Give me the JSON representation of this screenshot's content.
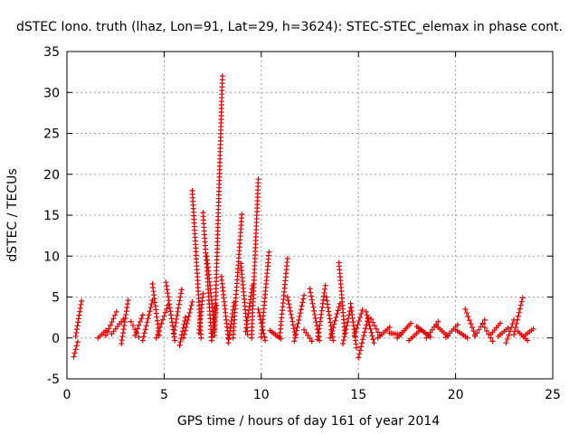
{
  "chart_data": {
    "type": "scatter",
    "title": "dSTEC Iono. truth (lhaz, Lon=91, Lat=29, h=3624): STEC-STEC_elemax in phase cont.",
    "xlabel": "GPS time / hours of day 161 of year 2014",
    "ylabel": "dSTEC  / TECUs",
    "xlim": [
      0,
      25
    ],
    "ylim": [
      -5,
      35
    ],
    "x_ticks": [
      0,
      5,
      10,
      15,
      20,
      25
    ],
    "y_ticks": [
      -5,
      0,
      5,
      10,
      15,
      20,
      25,
      30,
      35
    ],
    "grid": true,
    "marker": "+",
    "series_color": "#e00000",
    "arcs": [
      {
        "x0": 0.35,
        "x1": 0.55,
        "y0": -2.3,
        "y1": -0.5
      },
      {
        "x0": 0.45,
        "x1": 0.75,
        "y0": 0.2,
        "y1": 4.5
      },
      {
        "x0": 1.6,
        "x1": 2.0,
        "y0": 0.0,
        "y1": 0.9
      },
      {
        "x0": 2.0,
        "x1": 2.55,
        "y0": 0.3,
        "y1": 3.2
      },
      {
        "x0": 2.3,
        "x1": 2.9,
        "y0": 0.5,
        "y1": 2.3
      },
      {
        "x0": 2.8,
        "x1": 3.15,
        "y0": -0.7,
        "y1": 4.6
      },
      {
        "x0": 3.3,
        "x1": 3.7,
        "y0": 2.0,
        "y1": 0.1
      },
      {
        "x0": 3.5,
        "x1": 3.9,
        "y0": 0.3,
        "y1": 2.8
      },
      {
        "x0": 3.9,
        "x1": 4.4,
        "y0": -0.3,
        "y1": 4.6
      },
      {
        "x0": 4.4,
        "x1": 4.75,
        "y0": 6.6,
        "y1": 0.3
      },
      {
        "x0": 4.6,
        "x1": 5.2,
        "y0": 0.0,
        "y1": 4.0
      },
      {
        "x0": 5.1,
        "x1": 5.55,
        "y0": 6.8,
        "y1": -0.3
      },
      {
        "x0": 5.5,
        "x1": 5.9,
        "y0": 0.5,
        "y1": 5.9
      },
      {
        "x0": 5.8,
        "x1": 6.1,
        "y0": -0.9,
        "y1": 2.5
      },
      {
        "x0": 6.0,
        "x1": 6.45,
        "y0": 0.0,
        "y1": 4.4
      },
      {
        "x0": 6.45,
        "x1": 6.9,
        "y0": 18.0,
        "y1": 0.0
      },
      {
        "x0": 6.8,
        "x1": 7.0,
        "y0": 0.6,
        "y1": 5.4
      },
      {
        "x0": 7.0,
        "x1": 7.45,
        "y0": 15.3,
        "y1": -0.3
      },
      {
        "x0": 7.2,
        "x1": 7.6,
        "y0": 10.0,
        "y1": 1.0
      },
      {
        "x0": 7.45,
        "x1": 7.7,
        "y0": 0.1,
        "y1": 4.0
      },
      {
        "x0": 7.6,
        "x1": 8.0,
        "y0": 0.3,
        "y1": 32.0
      },
      {
        "x0": 7.95,
        "x1": 8.3,
        "y0": 7.5,
        "y1": 0.0
      },
      {
        "x0": 8.3,
        "x1": 8.6,
        "y0": -0.6,
        "y1": 4.3
      },
      {
        "x0": 8.55,
        "x1": 9.0,
        "y0": 0.0,
        "y1": 15.1
      },
      {
        "x0": 8.95,
        "x1": 9.3,
        "y0": 9.1,
        "y1": 0.4
      },
      {
        "x0": 9.2,
        "x1": 9.55,
        "y0": 0.8,
        "y1": 6.4
      },
      {
        "x0": 9.5,
        "x1": 9.85,
        "y0": 0.0,
        "y1": 19.4
      },
      {
        "x0": 9.85,
        "x1": 10.2,
        "y0": 3.5,
        "y1": -0.3
      },
      {
        "x0": 10.0,
        "x1": 10.4,
        "y0": 0.1,
        "y1": 10.5
      },
      {
        "x0": 10.45,
        "x1": 11.0,
        "y0": 0.9,
        "y1": -0.1
      },
      {
        "x0": 10.95,
        "x1": 11.35,
        "y0": 0.2,
        "y1": 9.7
      },
      {
        "x0": 11.35,
        "x1": 11.75,
        "y0": 5.0,
        "y1": 0.3
      },
      {
        "x0": 11.7,
        "x1": 12.2,
        "y0": -0.4,
        "y1": 5.2
      },
      {
        "x0": 12.2,
        "x1": 12.6,
        "y0": 1.0,
        "y1": -0.4
      },
      {
        "x0": 12.5,
        "x1": 13.0,
        "y0": 6.0,
        "y1": -0.3
      },
      {
        "x0": 12.9,
        "x1": 13.3,
        "y0": -0.2,
        "y1": 6.4
      },
      {
        "x0": 13.35,
        "x1": 13.7,
        "y0": 5.0,
        "y1": -0.3
      },
      {
        "x0": 13.55,
        "x1": 14.05,
        "y0": 0.0,
        "y1": 4.2
      },
      {
        "x0": 14.0,
        "x1": 14.3,
        "y0": 9.2,
        "y1": 0.5
      },
      {
        "x0": 14.2,
        "x1": 14.6,
        "y0": -0.7,
        "y1": 3.7
      },
      {
        "x0": 14.6,
        "x1": 14.9,
        "y0": 4.2,
        "y1": -1.2
      },
      {
        "x0": 14.8,
        "x1": 15.2,
        "y0": 0.3,
        "y1": 3.4
      },
      {
        "x0": 15.0,
        "x1": 15.5,
        "y0": -2.4,
        "y1": 2.5
      },
      {
        "x0": 15.4,
        "x1": 15.8,
        "y0": 3.2,
        "y1": -0.6
      },
      {
        "x0": 15.65,
        "x1": 16.1,
        "y0": 2.3,
        "y1": 0.3
      },
      {
        "x0": 16.0,
        "x1": 16.6,
        "y0": 0.0,
        "y1": 1.3
      },
      {
        "x0": 16.6,
        "x1": 17.2,
        "y0": 0.6,
        "y1": 0.4
      },
      {
        "x0": 17.0,
        "x1": 17.7,
        "y0": 0.0,
        "y1": 1.8
      },
      {
        "x0": 17.6,
        "x1": 18.2,
        "y0": -0.3,
        "y1": 1.0
      },
      {
        "x0": 18.0,
        "x1": 18.7,
        "y0": 1.4,
        "y1": 0.1
      },
      {
        "x0": 18.5,
        "x1": 19.1,
        "y0": 0.0,
        "y1": 2.0
      },
      {
        "x0": 19.0,
        "x1": 19.6,
        "y0": 1.5,
        "y1": 0.2
      },
      {
        "x0": 19.5,
        "x1": 20.1,
        "y0": 0.1,
        "y1": 1.6
      },
      {
        "x0": 20.0,
        "x1": 20.6,
        "y0": 1.0,
        "y1": 0.0
      },
      {
        "x0": 20.5,
        "x1": 21.0,
        "y0": 3.5,
        "y1": 0.4
      },
      {
        "x0": 21.0,
        "x1": 21.5,
        "y0": 0.2,
        "y1": 2.2
      },
      {
        "x0": 21.4,
        "x1": 21.9,
        "y0": 1.7,
        "y1": -0.4
      },
      {
        "x0": 21.8,
        "x1": 22.3,
        "y0": 0.4,
        "y1": 1.8
      },
      {
        "x0": 22.2,
        "x1": 22.7,
        "y0": 0.2,
        "y1": 1.2
      },
      {
        "x0": 22.6,
        "x1": 23.0,
        "y0": -0.6,
        "y1": 2.2
      },
      {
        "x0": 23.0,
        "x1": 23.45,
        "y0": 0.4,
        "y1": 4.9
      },
      {
        "x0": 23.2,
        "x1": 23.7,
        "y0": 0.8,
        "y1": -0.3
      },
      {
        "x0": 23.5,
        "x1": 24.0,
        "y0": 0.2,
        "y1": 1.1
      }
    ]
  }
}
